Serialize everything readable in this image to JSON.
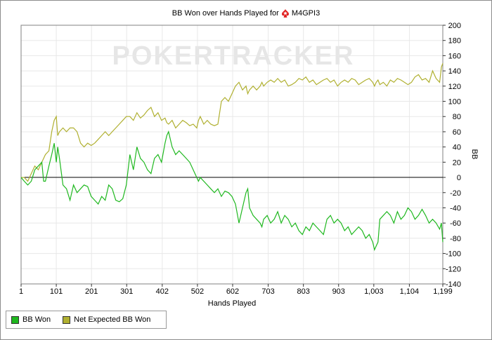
{
  "colors": {
    "bb_won": "#1fb81f",
    "expected": "#b0b030",
    "watermark": "#e6e6e6"
  },
  "chart_data": {
    "type": "line",
    "title": "BB Won over Hands Played for",
    "player": "M4GPI3",
    "watermark": "POKERTRACKER",
    "xlabel": "Hands Played",
    "ylabel": "BB",
    "xlim": [
      1,
      1199
    ],
    "ylim": [
      -140,
      200
    ],
    "x_ticks": [
      1,
      101,
      201,
      301,
      402,
      502,
      602,
      703,
      803,
      903,
      1003,
      1104,
      1199
    ],
    "x_tick_labels": [
      "1",
      "101",
      "201",
      "301",
      "402",
      "502",
      "602",
      "703",
      "803",
      "903",
      "1,003",
      "1,104",
      "1,199"
    ],
    "y_ticks": [
      200,
      180,
      160,
      140,
      120,
      100,
      80,
      60,
      40,
      20,
      0,
      -20,
      -40,
      -60,
      -80,
      -100,
      -120,
      -140
    ],
    "grid": true,
    "legend_position": "bottom-left",
    "series": [
      {
        "name": "BB Won",
        "color": "#1fb81f",
        "x": [
          1,
          10,
          20,
          30,
          40,
          50,
          60,
          65,
          70,
          80,
          88,
          95,
          101,
          105,
          110,
          120,
          130,
          140,
          150,
          160,
          170,
          180,
          190,
          200,
          210,
          220,
          230,
          240,
          250,
          260,
          270,
          280,
          290,
          300,
          310,
          320,
          330,
          340,
          350,
          360,
          370,
          380,
          390,
          400,
          410,
          415,
          420,
          430,
          440,
          450,
          460,
          470,
          480,
          490,
          500,
          505,
          510,
          520,
          530,
          540,
          550,
          560,
          570,
          580,
          590,
          600,
          610,
          620,
          630,
          640,
          645,
          650,
          660,
          670,
          680,
          685,
          690,
          700,
          710,
          720,
          730,
          740,
          750,
          760,
          770,
          780,
          790,
          800,
          810,
          820,
          830,
          840,
          850,
          860,
          870,
          880,
          890,
          900,
          910,
          920,
          930,
          940,
          950,
          960,
          970,
          980,
          990,
          1000,
          1005,
          1010,
          1015,
          1020,
          1030,
          1040,
          1050,
          1060,
          1070,
          1080,
          1090,
          1100,
          1110,
          1120,
          1130,
          1140,
          1150,
          1160,
          1170,
          1180,
          1190,
          1195,
          1199
        ],
        "values": [
          0,
          -5,
          -10,
          -5,
          10,
          15,
          20,
          -5,
          -5,
          15,
          30,
          45,
          20,
          40,
          25,
          -10,
          -15,
          -30,
          -10,
          -20,
          -15,
          -10,
          -12,
          -25,
          -30,
          -35,
          -25,
          -30,
          -10,
          -15,
          -30,
          -32,
          -28,
          -10,
          30,
          10,
          40,
          25,
          20,
          10,
          5,
          25,
          30,
          20,
          45,
          55,
          60,
          40,
          30,
          35,
          30,
          25,
          20,
          10,
          0,
          -5,
          0,
          -5,
          -10,
          -15,
          -20,
          -15,
          -25,
          -18,
          -20,
          -25,
          -35,
          -60,
          -40,
          -20,
          -15,
          -40,
          -50,
          -55,
          -60,
          -65,
          -55,
          -50,
          -60,
          -55,
          -45,
          -60,
          -50,
          -55,
          -65,
          -60,
          -70,
          -75,
          -65,
          -70,
          -60,
          -65,
          -70,
          -75,
          -55,
          -50,
          -60,
          -55,
          -60,
          -70,
          -65,
          -75,
          -70,
          -65,
          -70,
          -80,
          -75,
          -85,
          -95,
          -90,
          -85,
          -55,
          -50,
          -45,
          -50,
          -60,
          -45,
          -55,
          -50,
          -40,
          -45,
          -55,
          -50,
          -42,
          -50,
          -60,
          -55,
          -60,
          -68,
          -60,
          -85
        ]
      },
      {
        "name": "Net Expected BB Won",
        "color": "#b0b030",
        "x": [
          1,
          10,
          20,
          30,
          40,
          50,
          60,
          65,
          70,
          80,
          88,
          95,
          101,
          105,
          110,
          120,
          130,
          140,
          150,
          160,
          170,
          180,
          190,
          200,
          210,
          220,
          230,
          240,
          250,
          260,
          270,
          280,
          290,
          300,
          310,
          320,
          330,
          340,
          350,
          360,
          370,
          380,
          390,
          400,
          410,
          415,
          420,
          430,
          440,
          450,
          460,
          470,
          480,
          490,
          500,
          505,
          510,
          520,
          530,
          540,
          550,
          560,
          570,
          580,
          590,
          600,
          610,
          620,
          630,
          640,
          645,
          650,
          660,
          670,
          680,
          685,
          690,
          700,
          710,
          720,
          730,
          740,
          750,
          760,
          770,
          780,
          790,
          800,
          810,
          820,
          830,
          840,
          850,
          860,
          870,
          880,
          890,
          900,
          910,
          920,
          930,
          940,
          950,
          960,
          970,
          980,
          990,
          1000,
          1005,
          1010,
          1015,
          1020,
          1030,
          1040,
          1050,
          1060,
          1070,
          1080,
          1090,
          1100,
          1110,
          1120,
          1130,
          1140,
          1150,
          1160,
          1170,
          1180,
          1190,
          1195,
          1199
        ],
        "values": [
          0,
          0,
          -5,
          5,
          15,
          10,
          20,
          25,
          30,
          35,
          60,
          75,
          80,
          55,
          60,
          65,
          60,
          65,
          65,
          60,
          45,
          40,
          45,
          42,
          45,
          50,
          55,
          60,
          55,
          60,
          65,
          70,
          75,
          80,
          80,
          75,
          85,
          78,
          82,
          88,
          92,
          80,
          85,
          75,
          78,
          72,
          70,
          75,
          65,
          70,
          75,
          72,
          68,
          70,
          65,
          75,
          80,
          70,
          75,
          70,
          68,
          70,
          100,
          105,
          100,
          110,
          120,
          125,
          115,
          120,
          110,
          115,
          120,
          115,
          120,
          125,
          120,
          125,
          128,
          125,
          130,
          125,
          128,
          120,
          122,
          125,
          130,
          128,
          132,
          125,
          128,
          122,
          125,
          128,
          130,
          125,
          128,
          120,
          125,
          128,
          125,
          130,
          128,
          122,
          125,
          128,
          130,
          125,
          120,
          125,
          128,
          122,
          125,
          120,
          128,
          125,
          130,
          128,
          125,
          122,
          125,
          132,
          135,
          128,
          130,
          125,
          140,
          130,
          125,
          145,
          150
        ]
      }
    ]
  },
  "legend": {
    "item1": "BB Won",
    "item2": "Net Expected BB Won"
  }
}
